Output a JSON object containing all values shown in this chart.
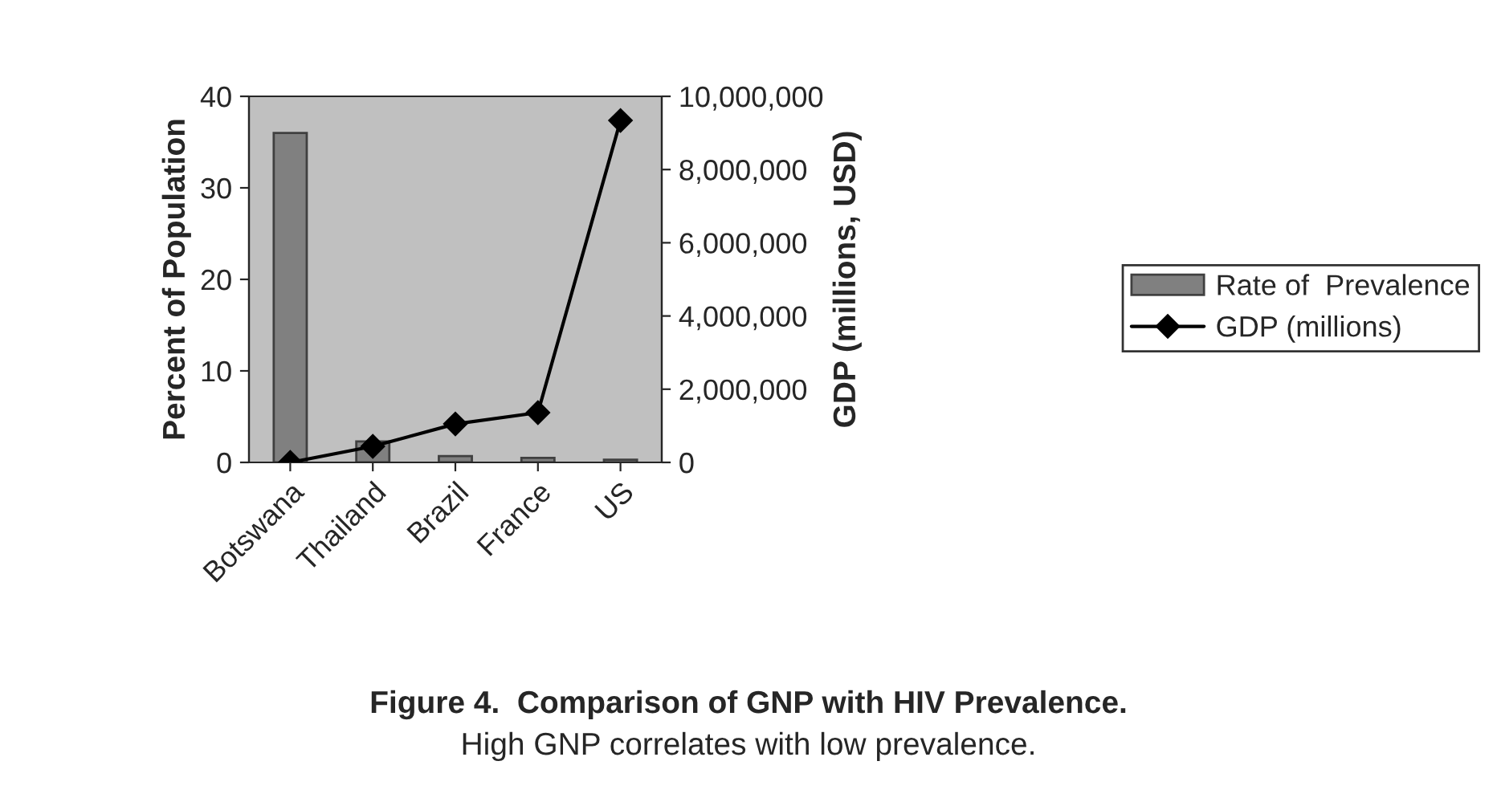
{
  "chart_data": {
    "type": "bar",
    "title": "Figure 4.  Comparison of GNP with HIV Prevalence.",
    "annotations": [
      "High GNP correlates with low prevalence."
    ],
    "ylabel": "Percent of Population",
    "y2label": "GDP (millions, USD)",
    "categories": [
      "Botswana",
      "Thailand",
      "Brazil",
      "France",
      "US"
    ],
    "series": [
      {
        "name": "Rate of  Prevalence",
        "color": "#808080",
        "values": [
          36,
          2.3,
          0.7,
          0.5,
          0.3
        ]
      },
      {
        "name": "GDP (millions)",
        "type": "line",
        "axis": "y2",
        "color": "#000000",
        "marker": "diamond",
        "values": [
          0,
          440000,
          1050000,
          1360000,
          9340000
        ]
      }
    ],
    "ylim": [
      0,
      40
    ],
    "yticks": [
      0,
      10,
      20,
      30,
      40
    ],
    "y2lim": [
      0,
      10000000
    ],
    "y2ticks": [
      {
        "value": 0,
        "label": "0"
      },
      {
        "value": 2000000,
        "label": "2,000,000"
      },
      {
        "value": 4000000,
        "label": "4,000,000"
      },
      {
        "value": 6000000,
        "label": "6,000,000"
      },
      {
        "value": 8000000,
        "label": "8,000,000"
      },
      {
        "value": 10000000,
        "label": "10,000,000"
      }
    ],
    "legend": "right",
    "grid": false
  }
}
